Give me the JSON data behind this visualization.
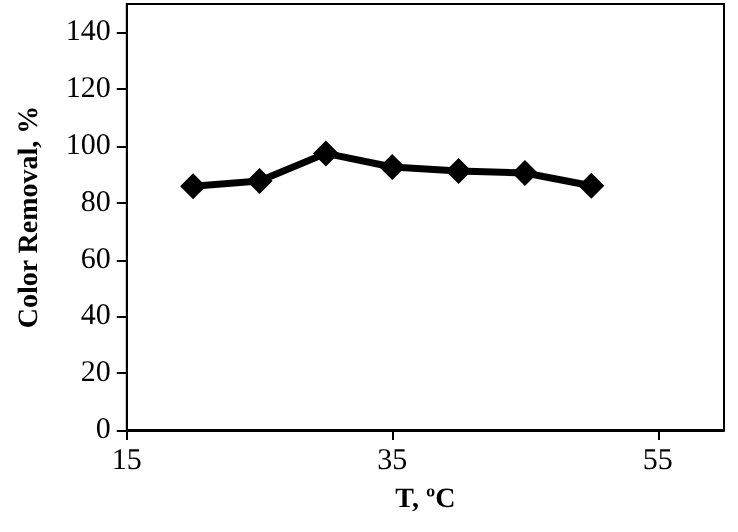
{
  "chart_data": {
    "type": "line",
    "xlabel": "T, ºC",
    "ylabel": "Color Removal, %",
    "x": [
      20,
      25,
      30,
      35,
      40,
      45,
      50
    ],
    "series": [
      {
        "color": "#000000",
        "values": [
          85.8,
          87.7,
          97.4,
          92.6,
          91.2,
          90.5,
          86
        ]
      }
    ],
    "xlim": [
      15,
      60
    ],
    "xticks": [
      15,
      35,
      55
    ],
    "ylim": [
      0,
      150
    ],
    "yticks": [
      0,
      20,
      40,
      60,
      80,
      100,
      120,
      140
    ],
    "grid": false,
    "marker": "diamond",
    "line_style": "solid"
  }
}
